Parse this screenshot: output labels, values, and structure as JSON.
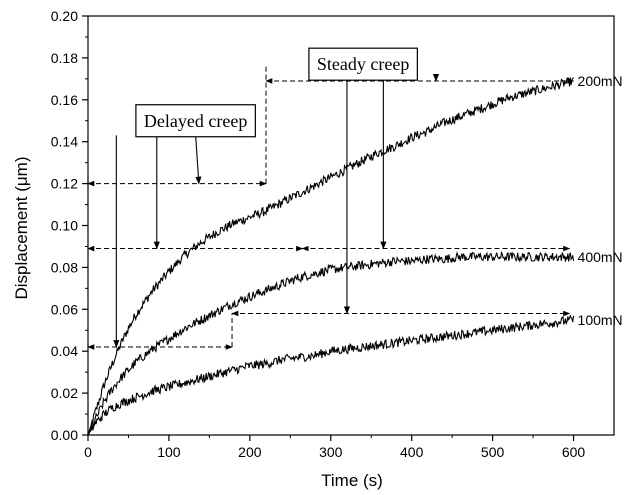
{
  "chart_data": {
    "type": "line",
    "xlabel": "Time (s)",
    "ylabel": "Displacement (μm)",
    "xlim": [
      0,
      650
    ],
    "ylim": [
      0,
      0.2
    ],
    "xticks": [
      0,
      100,
      200,
      300,
      400,
      500,
      600
    ],
    "xtick_labels": [
      "0",
      "100",
      "200",
      "300",
      "400",
      "500",
      "600"
    ],
    "yticks": [
      0.0,
      0.02,
      0.04,
      0.06,
      0.08,
      0.1,
      0.12,
      0.14,
      0.16,
      0.18,
      0.2
    ],
    "ytick_labels": [
      "0.00",
      "0.02",
      "0.04",
      "0.06",
      "0.08",
      "0.10",
      "0.12",
      "0.14",
      "0.16",
      "0.18",
      "0.20"
    ],
    "grid": false,
    "series": [
      {
        "name": "200mN",
        "x": [
          0,
          10,
          20,
          30,
          40,
          50,
          60,
          80,
          100,
          120,
          140,
          160,
          180,
          200,
          220,
          240,
          260,
          280,
          300,
          320,
          340,
          360,
          380,
          400,
          420,
          440,
          460,
          480,
          500,
          520,
          540,
          560,
          580,
          600
        ],
        "y": [
          0,
          0.012,
          0.024,
          0.034,
          0.043,
          0.051,
          0.058,
          0.069,
          0.078,
          0.086,
          0.092,
          0.097,
          0.101,
          0.104,
          0.107,
          0.111,
          0.115,
          0.119,
          0.123,
          0.127,
          0.131,
          0.135,
          0.138,
          0.142,
          0.145,
          0.149,
          0.152,
          0.155,
          0.158,
          0.161,
          0.163,
          0.165,
          0.167,
          0.169
        ]
      },
      {
        "name": "400mN",
        "x": [
          0,
          10,
          20,
          30,
          40,
          60,
          80,
          100,
          120,
          140,
          160,
          180,
          200,
          220,
          240,
          260,
          280,
          300,
          320,
          340,
          360,
          380,
          400,
          420,
          440,
          460,
          480,
          500,
          520,
          540,
          560,
          580,
          600
        ],
        "y": [
          0,
          0.008,
          0.016,
          0.022,
          0.027,
          0.035,
          0.041,
          0.046,
          0.051,
          0.055,
          0.059,
          0.063,
          0.066,
          0.069,
          0.072,
          0.075,
          0.077,
          0.079,
          0.08,
          0.081,
          0.082,
          0.083,
          0.083,
          0.084,
          0.084,
          0.085,
          0.085,
          0.085,
          0.085,
          0.085,
          0.085,
          0.085,
          0.085
        ]
      },
      {
        "name": "100mN",
        "x": [
          0,
          10,
          20,
          30,
          40,
          60,
          80,
          100,
          120,
          140,
          160,
          180,
          200,
          220,
          240,
          260,
          280,
          300,
          320,
          340,
          360,
          380,
          400,
          420,
          440,
          460,
          480,
          500,
          520,
          540,
          560,
          580,
          600
        ],
        "y": [
          0,
          0.006,
          0.01,
          0.013,
          0.015,
          0.018,
          0.021,
          0.023,
          0.025,
          0.027,
          0.029,
          0.031,
          0.033,
          0.034,
          0.036,
          0.037,
          0.038,
          0.04,
          0.041,
          0.042,
          0.043,
          0.044,
          0.045,
          0.046,
          0.047,
          0.048,
          0.049,
          0.05,
          0.051,
          0.052,
          0.053,
          0.054,
          0.055
        ]
      }
    ],
    "annotations": [
      {
        "text": "Delayed creep",
        "x": 133,
        "y": 0.15
      },
      {
        "text": "Steady creep",
        "x": 340,
        "y": 0.177
      }
    ],
    "reference_lines": [
      {
        "x_from": 0,
        "x_to": 220,
        "y": 0.12
      },
      {
        "x_from": 220,
        "x_to": 600,
        "y": 0.169
      },
      {
        "x_from": 0,
        "x_to": 265,
        "y": 0.089
      },
      {
        "x_from": 265,
        "x_to": 595,
        "y": 0.089
      },
      {
        "x_from": 0,
        "x_to": 178,
        "y": 0.042
      },
      {
        "x_from": 178,
        "x_to": 595,
        "y": 0.058
      }
    ],
    "arrows": [
      {
        "from": [
          133,
          0.143
        ],
        "to": [
          137,
          0.12
        ]
      },
      {
        "from": [
          85,
          0.143
        ],
        "to": [
          85,
          0.089
        ]
      },
      {
        "from": [
          35,
          0.143
        ],
        "to": [
          35,
          0.042
        ]
      },
      {
        "from": [
          430,
          0.172
        ],
        "to": [
          430,
          0.169
        ]
      },
      {
        "from": [
          365,
          0.172
        ],
        "to": [
          365,
          0.089
        ]
      },
      {
        "from": [
          320,
          0.172
        ],
        "to": [
          320,
          0.058
        ]
      }
    ]
  }
}
